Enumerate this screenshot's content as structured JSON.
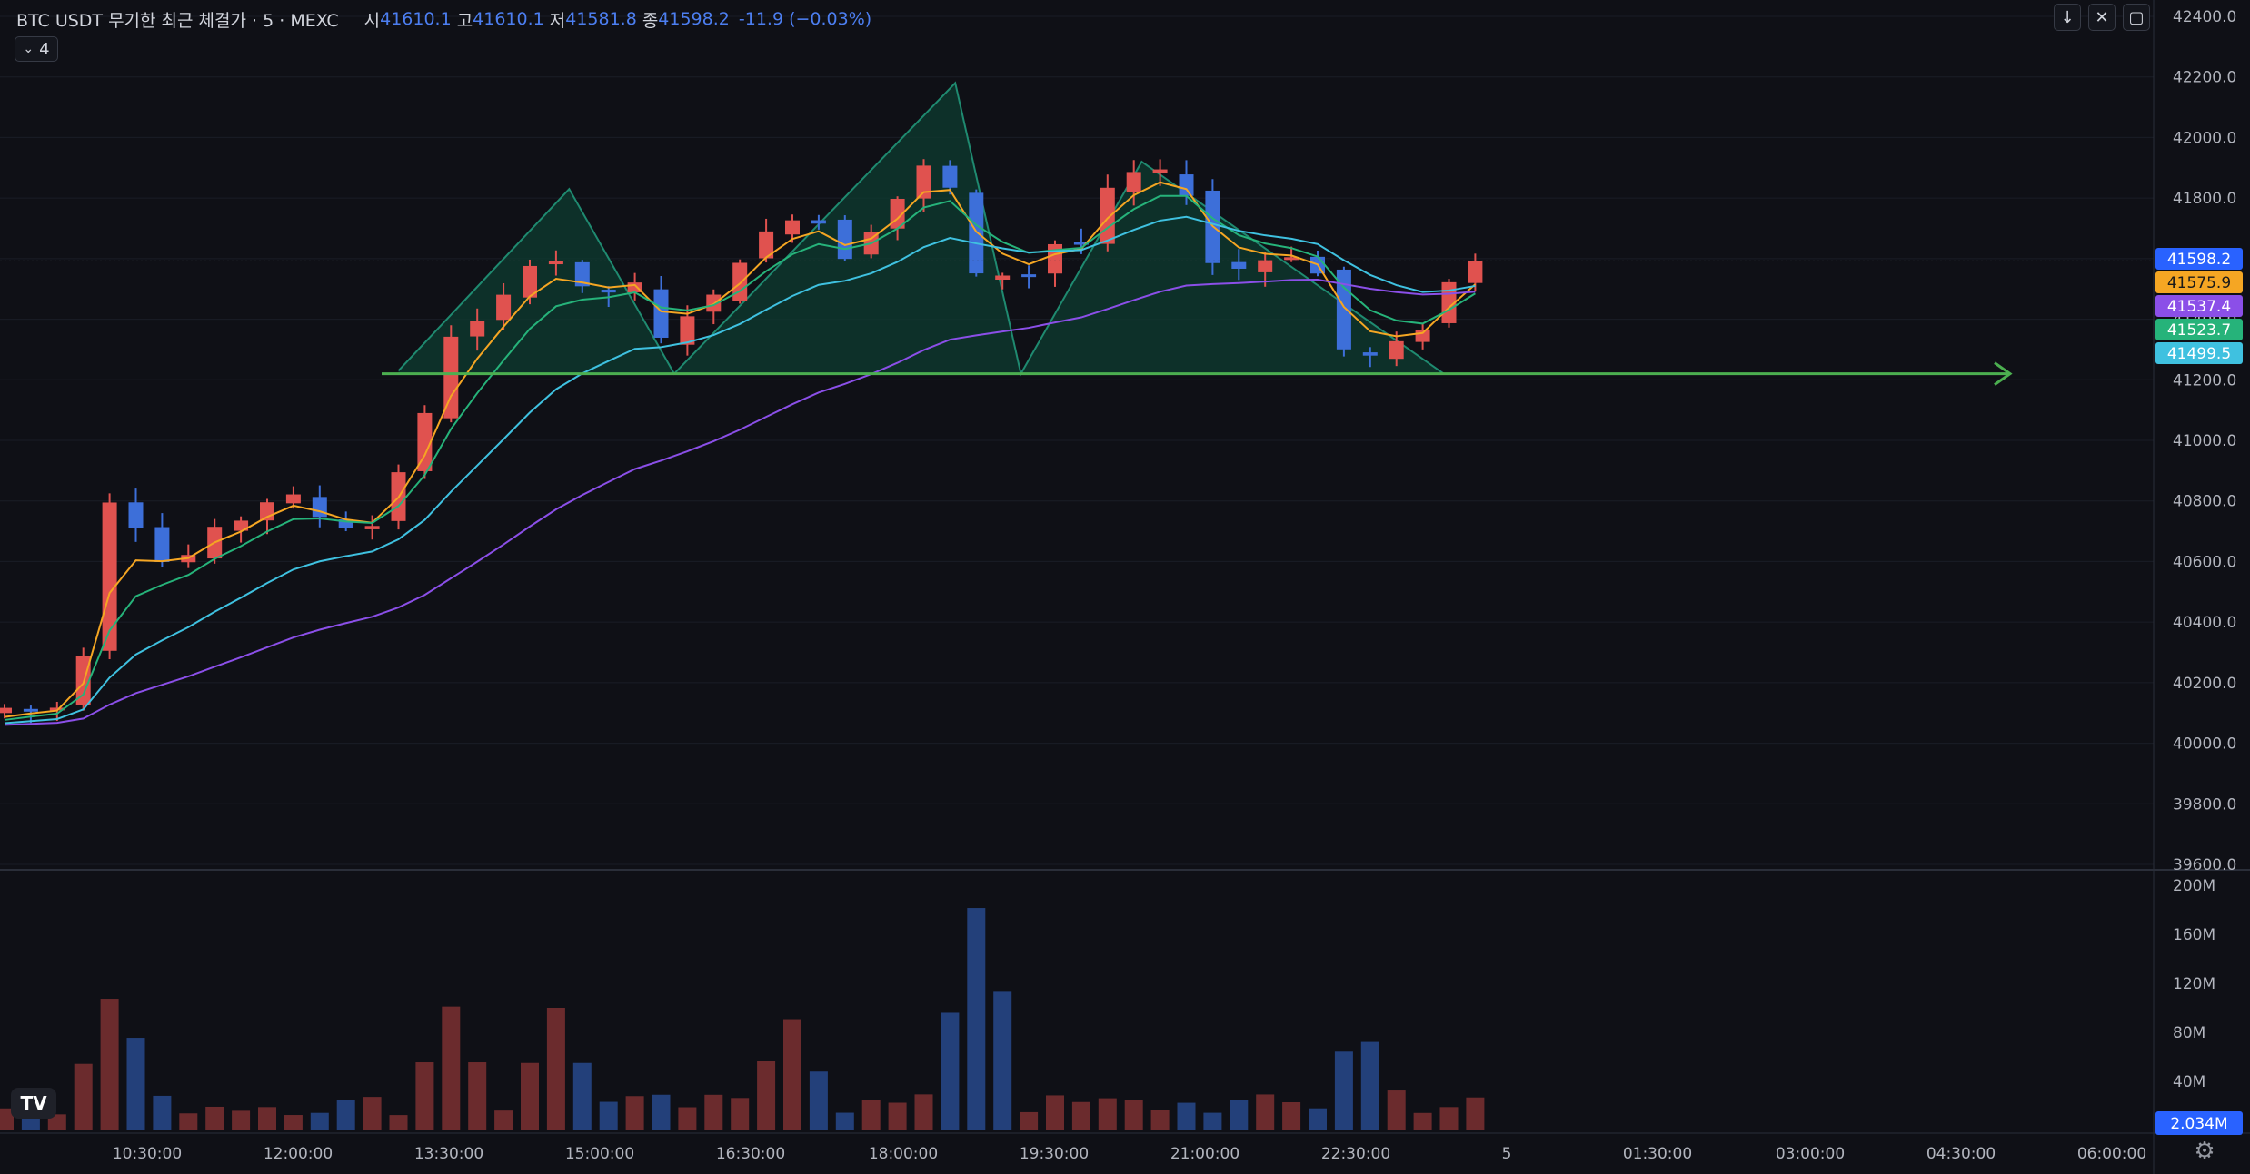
{
  "header": {
    "symbol": "BTC USDT 무기한 최근 체결가 · 5 · MEXC",
    "open_label": "시",
    "open_value": "41610.1",
    "high_label": "고",
    "high_value": "41610.1",
    "low_label": "저",
    "low_value": "41581.8",
    "close_label": "종",
    "close_value": "41598.2",
    "change": "-11.9 (−0.03%)"
  },
  "indicator_toggle": {
    "count": "4",
    "icon": "chevron-down-icon"
  },
  "top_buttons": [
    {
      "icon": "arrow-down-icon",
      "glyph": "↓"
    },
    {
      "icon": "collapse-icon",
      "glyph": "✕"
    },
    {
      "icon": "maximize-icon",
      "glyph": "▢"
    }
  ],
  "colors": {
    "background": "#0f1016",
    "candle_up": "#e0524f",
    "candle_down": "#3d6fd9",
    "ma_orange": "#f5a623",
    "ma_green": "#26b37a",
    "ma_cyan": "#3fc1e0",
    "ma_purple": "#8b4fe8",
    "neckline": "#4caf50",
    "pattern_fill": "#0e3b30",
    "pattern_stroke": "#1f8a70"
  },
  "chart_data": {
    "type": "candlestick",
    "x_ticks": [
      "10:30:00",
      "12:00:00",
      "13:30:00",
      "15:00:00",
      "16:30:00",
      "18:00:00",
      "19:30:00",
      "21:00:00",
      "22:30:00",
      "5",
      "01:30:00",
      "03:00:00",
      "04:30:00",
      "06:00:00"
    ],
    "price_axis": {
      "ticks": [
        "42400.0",
        "42200.0",
        "42000.0",
        "41800.0",
        "41600.0",
        "41400.0",
        "41200.0",
        "41000.0",
        "40800.0",
        "40600.0",
        "40400.0",
        "40200.0",
        "40000.0",
        "39800.0",
        "39600.0"
      ],
      "range": [
        39600,
        42400
      ]
    },
    "volume_axis": {
      "ticks": [
        "200M",
        "160M",
        "120M",
        "80M",
        "40M"
      ],
      "range": [
        0,
        200
      ]
    },
    "price_labels": [
      {
        "value": "41598.2",
        "color": "#2962ff"
      },
      {
        "value": "41575.9",
        "color": "#f5a623"
      },
      {
        "value": "41537.4",
        "color": "#8b4fe8"
      },
      {
        "value": "41523.7",
        "color": "#26b37a"
      },
      {
        "value": "41499.5",
        "color": "#3fc1e0"
      }
    ],
    "volume_label": {
      "value": "2.034M",
      "color": "#2962ff"
    },
    "neckline_price": 41220,
    "pattern_points": [
      [
        15,
        41230
      ],
      [
        21.5,
        41830
      ],
      [
        25.5,
        41220
      ],
      [
        36.2,
        42180
      ],
      [
        38.7,
        41220
      ],
      [
        43.3,
        41920
      ],
      [
        54.8,
        41220
      ]
    ],
    "anchors": [
      [
        0,
        40100
      ],
      [
        1,
        40130
      ],
      [
        2,
        40090
      ],
      [
        3,
        40150
      ],
      [
        3.5,
        40300
      ],
      [
        4,
        40780
      ],
      [
        5,
        40830
      ],
      [
        6,
        40620
      ],
      [
        7,
        40580
      ],
      [
        8.5,
        40700
      ],
      [
        10,
        40760
      ],
      [
        11,
        40840
      ],
      [
        12,
        40780
      ],
      [
        13,
        40720
      ],
      [
        14.5,
        40720
      ],
      [
        15.5,
        40900
      ],
      [
        16.5,
        41080
      ],
      [
        17,
        41350
      ],
      [
        18,
        41350
      ],
      [
        19,
        41420
      ],
      [
        20,
        41520
      ],
      [
        21,
        41660
      ],
      [
        22,
        41530
      ],
      [
        23,
        41460
      ],
      [
        24,
        41520
      ],
      [
        25,
        41500
      ],
      [
        25.5,
        41330
      ],
      [
        26.5,
        41420
      ],
      [
        27.5,
        41470
      ],
      [
        28.5,
        41600
      ],
      [
        29.5,
        41680
      ],
      [
        30.5,
        41740
      ],
      [
        31.5,
        41720
      ],
      [
        32.5,
        41610
      ],
      [
        33.5,
        41700
      ],
      [
        34.5,
        41800
      ],
      [
        35.5,
        41900
      ],
      [
        36.2,
        42060
      ],
      [
        36.8,
        41600
      ],
      [
        37.5,
        41540
      ],
      [
        38.2,
        41580
      ],
      [
        39,
        41500
      ],
      [
        40,
        41600
      ],
      [
        40.8,
        41680
      ],
      [
        41.5,
        41650
      ],
      [
        42.5,
        41820
      ],
      [
        43.5,
        41880
      ],
      [
        44.5,
        41880
      ],
      [
        45.5,
        41820
      ],
      [
        46.3,
        41600
      ],
      [
        47,
        41560
      ],
      [
        48.2,
        41580
      ],
      [
        49,
        41630
      ],
      [
        50,
        41600
      ],
      [
        50.8,
        41520
      ],
      [
        51.5,
        41300
      ],
      [
        52.2,
        41260
      ],
      [
        53,
        41300
      ],
      [
        54,
        41330
      ],
      [
        55,
        41420
      ],
      [
        55.8,
        41580
      ],
      [
        56.3,
        41600
      ]
    ],
    "volume_peaks": [
      [
        4.2,
        118
      ],
      [
        17,
        101
      ],
      [
        21,
        100
      ],
      [
        29.9,
        95
      ],
      [
        37.1,
        190
      ],
      [
        51.6,
        88
      ]
    ]
  }
}
